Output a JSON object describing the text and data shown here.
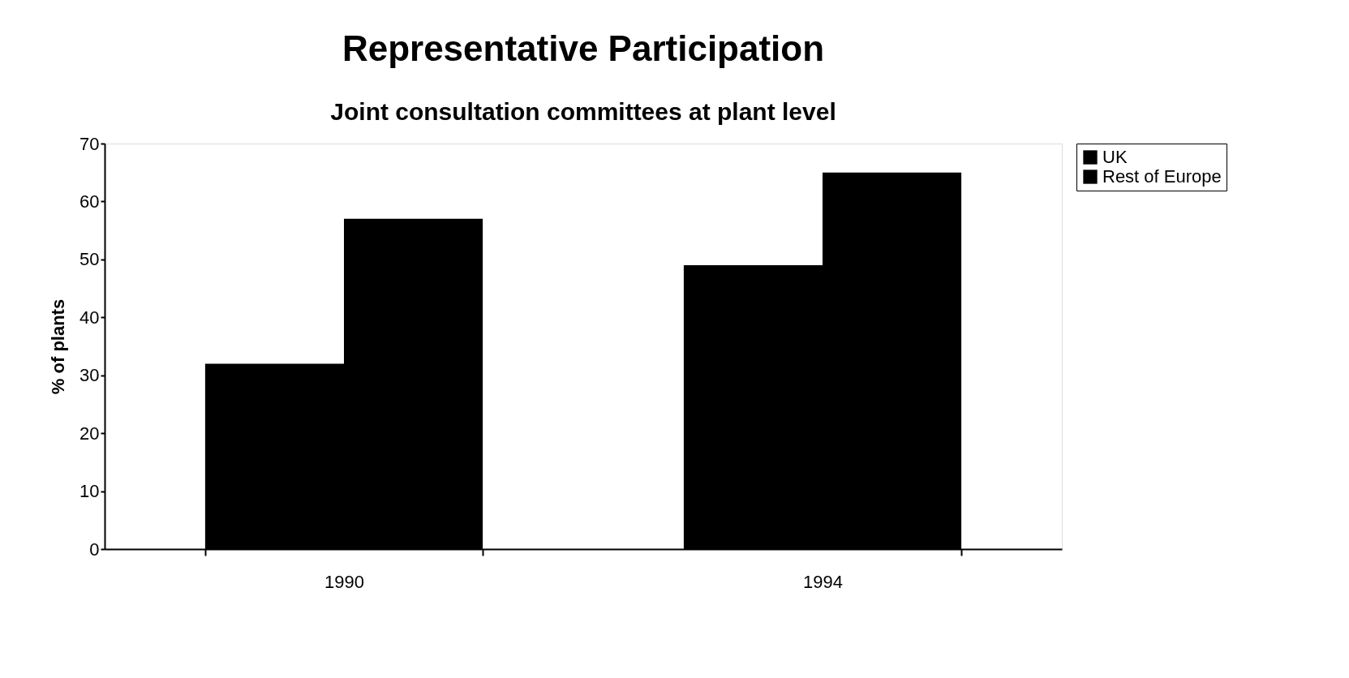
{
  "chart_data": {
    "type": "bar",
    "title": "Representative Participation",
    "subtitle": "Joint consultation committees at plant level",
    "ylabel": "% of plants",
    "categories": [
      "1990",
      "1994"
    ],
    "series": [
      {
        "name": "UK",
        "color": "#000000",
        "values": [
          32,
          49
        ]
      },
      {
        "name": "Rest of Europe",
        "color": "#000000",
        "values": [
          57,
          65
        ]
      }
    ],
    "ylim": [
      0,
      70
    ],
    "yticks": [
      0,
      10,
      20,
      30,
      40,
      50,
      60,
      70
    ],
    "grid": false,
    "legend": "right"
  }
}
